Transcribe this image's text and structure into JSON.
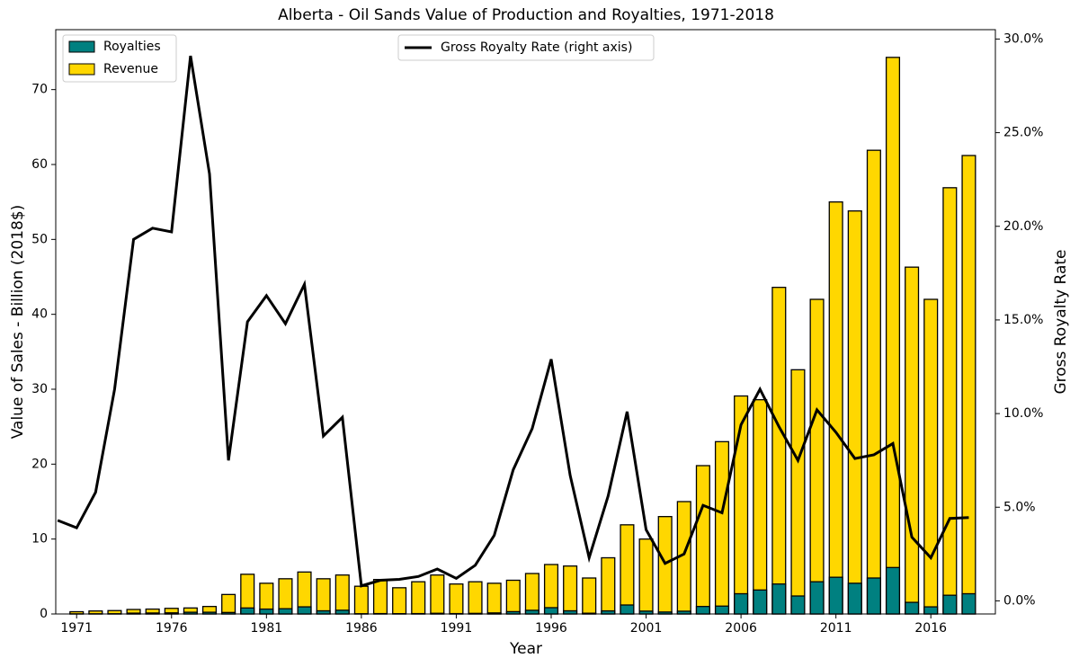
{
  "chart_data": {
    "type": "bar",
    "title": "Alberta - Oil Sands Value of Production and Royalties, 1971-2018",
    "x_label": "Year",
    "y_label": "Value of Sales - Billion (2018$)",
    "y2_label": "Gross Royalty Rate",
    "x": [
      1970,
      1971,
      1972,
      1973,
      1974,
      1975,
      1976,
      1977,
      1978,
      1979,
      1980,
      1981,
      1982,
      1983,
      1984,
      1985,
      1986,
      1987,
      1988,
      1989,
      1990,
      1991,
      1992,
      1993,
      1994,
      1995,
      1996,
      1997,
      1998,
      1999,
      2000,
      2001,
      2002,
      2003,
      2004,
      2005,
      2006,
      2007,
      2008,
      2009,
      2010,
      2011,
      2012,
      2013,
      2014,
      2015,
      2016,
      2017,
      2018
    ],
    "series": [
      {
        "name": "Revenue",
        "type": "bar",
        "color": "#ffd700",
        "values": [
          null,
          0.3,
          0.4,
          0.45,
          0.6,
          0.65,
          0.75,
          0.8,
          1.0,
          2.6,
          5.3,
          4.1,
          4.7,
          5.6,
          4.7,
          5.2,
          3.7,
          4.6,
          3.5,
          4.3,
          5.2,
          4.0,
          4.3,
          4.1,
          4.5,
          5.4,
          6.6,
          6.4,
          4.8,
          7.5,
          11.9,
          10.0,
          13.0,
          15.0,
          19.8,
          23.0,
          29.1,
          28.6,
          43.6,
          32.6,
          42.0,
          55.0,
          53.8,
          61.9,
          74.3,
          46.3,
          42.0,
          56.9,
          61.2
        ]
      },
      {
        "name": "Royalties",
        "type": "bar",
        "color": "#008080",
        "values": [
          null,
          0.01,
          0.02,
          0.03,
          0.11,
          0.13,
          0.15,
          0.23,
          0.23,
          0.2,
          0.8,
          0.65,
          0.7,
          0.95,
          0.42,
          0.5,
          0.03,
          0.05,
          0.04,
          0.05,
          0.09,
          0.05,
          0.08,
          0.14,
          0.31,
          0.49,
          0.84,
          0.42,
          0.1,
          0.41,
          1.2,
          0.38,
          0.26,
          0.37,
          1.0,
          1.05,
          2.7,
          3.2,
          4.0,
          2.4,
          4.3,
          4.9,
          4.1,
          4.8,
          6.2,
          1.55,
          0.95,
          2.5,
          2.7
        ]
      },
      {
        "name": "Gross Royalty Rate (right axis)",
        "type": "line",
        "axis": "y2",
        "color": "#000000",
        "values": [
          4.3,
          3.9,
          5.8,
          11.3,
          19.3,
          19.9,
          19.7,
          29.1,
          22.8,
          7.5,
          14.9,
          16.3,
          14.8,
          16.9,
          8.8,
          9.8,
          0.8,
          1.1,
          1.15,
          1.3,
          1.7,
          1.2,
          1.9,
          3.5,
          7.0,
          9.2,
          12.9,
          6.7,
          2.3,
          5.6,
          10.1,
          3.8,
          2.0,
          2.5,
          5.1,
          4.7,
          9.4,
          11.3,
          9.3,
          7.5,
          10.2,
          9.0,
          7.6,
          7.8,
          8.4,
          3.4,
          2.3,
          4.4,
          4.45
        ]
      }
    ],
    "xlim": [
      1969.9,
      2019.4
    ],
    "xticks": [
      1971,
      1976,
      1981,
      1986,
      1991,
      1996,
      2001,
      2006,
      2011,
      2016
    ],
    "ylim": [
      0,
      78
    ],
    "yticks": [
      0,
      10,
      20,
      30,
      40,
      50,
      60,
      70
    ],
    "y2lim": [
      -0.7,
      30.5
    ],
    "y2ticks": [
      {
        "value": 0,
        "label": "0.0%"
      },
      {
        "value": 5,
        "label": "5.0%"
      },
      {
        "value": 10,
        "label": "10.0%"
      },
      {
        "value": 15,
        "label": "15.0%"
      },
      {
        "value": 20,
        "label": "20.0%"
      },
      {
        "value": 25,
        "label": "25.0%"
      },
      {
        "value": 30,
        "label": "30.0%"
      }
    ]
  }
}
